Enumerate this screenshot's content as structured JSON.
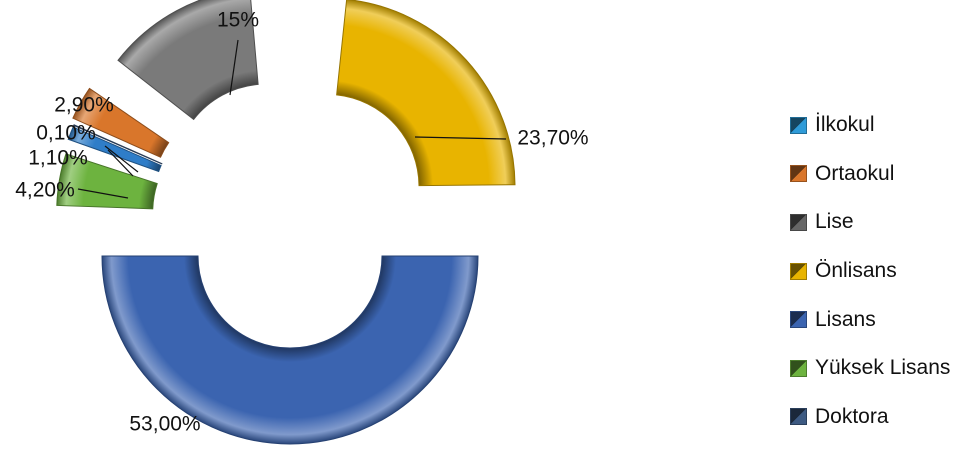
{
  "chart_data": {
    "type": "pie",
    "variant": "exploded-doughnut-3d",
    "categories": [
      "İlkokul",
      "Ortaokul",
      "Lise",
      "Önlisans",
      "Lisans",
      "Yüksek Lisans",
      "Doktora"
    ],
    "values": [
      1.1,
      2.9,
      15.0,
      23.7,
      53.0,
      4.2,
      0.1
    ],
    "value_labels": [
      "1,10%",
      "2,90%",
      "15%",
      "23,70%",
      "53,00%",
      "4,20%",
      "0,10%"
    ],
    "colors": [
      "#2F7DC8",
      "#D9762B",
      "#7A7A7A",
      "#E8B400",
      "#3B64B0",
      "#6DB33F",
      "#3D5A82"
    ],
    "legend_position": "right"
  },
  "legend": {
    "items": [
      {
        "label": "İlkokul",
        "color": "#2F9BD8"
      },
      {
        "label": "Ortaokul",
        "color": "#D9762B"
      },
      {
        "label": "Lise",
        "color": "#666666"
      },
      {
        "label": "Önlisans",
        "color": "#E8B400"
      },
      {
        "label": "Lisans",
        "color": "#3B64B0"
      },
      {
        "label": "Yüksek Lisans",
        "color": "#6DB33F"
      },
      {
        "label": "Doktora",
        "color": "#3D5A82"
      }
    ]
  }
}
